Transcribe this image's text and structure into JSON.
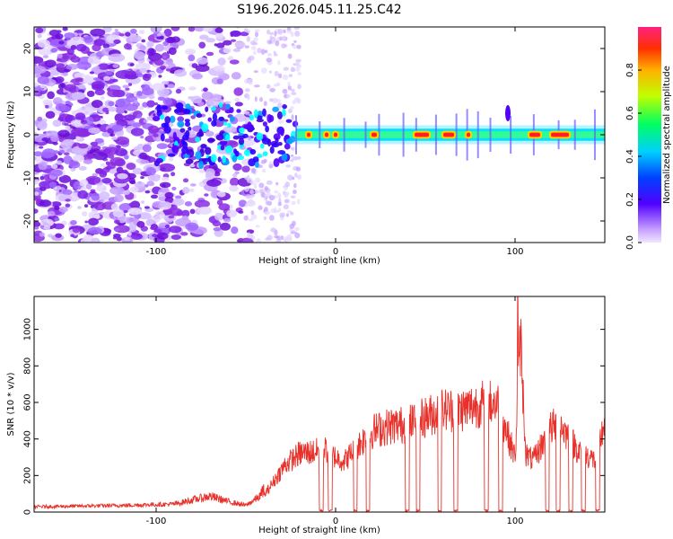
{
  "chart_data": [
    {
      "type": "heatmap",
      "title": "S196.2026.045.11.25.C42",
      "xlabel": "Height of straight line (km)",
      "ylabel": "Frequency (Hz)",
      "xlim": [
        -168,
        150
      ],
      "ylim": [
        -25,
        25
      ],
      "xticks": [
        -100,
        0,
        100
      ],
      "xtick_labels": [
        "-100",
        "0",
        "100"
      ],
      "yticks": [
        -20,
        -10,
        0,
        10,
        20
      ],
      "ytick_labels": [
        "-20",
        "-10",
        "0",
        "10",
        "20"
      ],
      "colorbar": {
        "label": "Normalized spectral amplitude",
        "range": [
          0,
          1
        ],
        "ticks": [
          0.0,
          0.2,
          0.4,
          0.6,
          0.8
        ],
        "tick_labels": [
          "0.0",
          "0.2",
          "0.4",
          "0.6",
          "0.8"
        ]
      },
      "description_values": {
        "noise_region_x": [
          -168,
          -50
        ],
        "signal_band_center_hz": 0,
        "strong_band_x": [
          -22,
          150
        ],
        "peak_segments_x": [
          [
            -16,
            -14
          ],
          [
            -6,
            -4
          ],
          [
            -1,
            1
          ],
          [
            20,
            23
          ],
          [
            44,
            52
          ],
          [
            60,
            66
          ],
          [
            73,
            75
          ],
          [
            108,
            114
          ],
          [
            120,
            130
          ]
        ]
      }
    },
    {
      "type": "line",
      "xlabel": "Height of straight line (km)",
      "ylabel": "SNR (10 * v/v)",
      "xlim": [
        -168,
        150
      ],
      "ylim": [
        0,
        1180
      ],
      "xticks": [
        -100,
        0,
        100
      ],
      "xtick_labels": [
        "-100",
        "0",
        "100"
      ],
      "yticks": [
        0,
        200,
        400,
        600,
        800,
        1000
      ],
      "ytick_labels": [
        "0",
        "200",
        "400",
        "600",
        "800",
        "1000"
      ],
      "series": [
        {
          "name": "SNR",
          "color": "#e8312a",
          "envelope": {
            "x": [
              -168,
              -120,
              -90,
              -80,
              -70,
              -60,
              -50,
              -42,
              -35,
              -28,
              -20,
              -12,
              -5,
              0,
              5,
              12,
              20,
              30,
              40,
              50,
              60,
              70,
              80,
              90,
              95,
              100,
              103,
              106,
              110,
              120,
              125,
              135,
              145,
              150
            ],
            "y": [
              20,
              25,
              30,
              45,
              60,
              40,
              25,
              60,
              160,
              260,
              320,
              330,
              340,
              300,
              280,
              360,
              440,
              470,
              480,
              520,
              560,
              560,
              590,
              600,
              450,
              300,
              950,
              320,
              280,
              460,
              480,
              340,
              280,
              500
            ]
          },
          "dropouts_x": [
            -8,
            -3,
            11,
            18,
            40,
            46,
            58,
            67,
            84,
            92,
            118,
            124,
            131,
            138,
            146
          ],
          "peak": {
            "x": 101.5,
            "y": 1180
          }
        }
      ]
    }
  ],
  "colors": {
    "signal_line": "#e8312a",
    "noise_dots": "#8a2be2",
    "axis": "#000000"
  }
}
